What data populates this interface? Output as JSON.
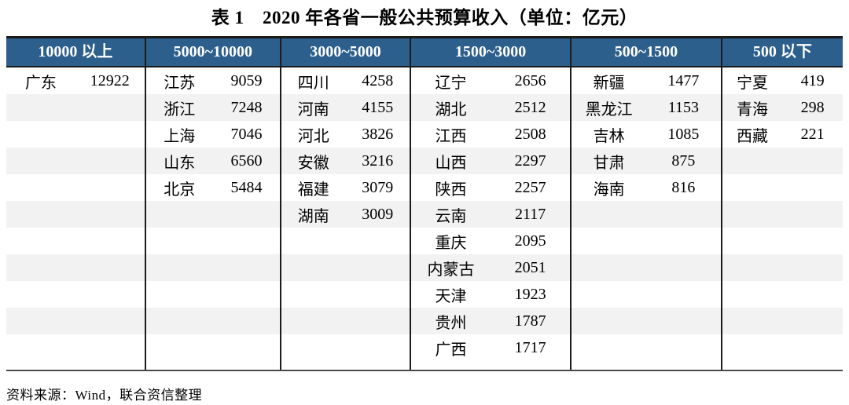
{
  "title": "表 1　2020 年各省一般公共预算收入（单位：亿元）",
  "source_note": "资料来源：Wind，联合资信整理",
  "colors": {
    "header_bg": "#2d5f8c",
    "header_text": "#ffffff",
    "stripe": "#f2f2f2",
    "border": "#1b1b1b"
  },
  "table": {
    "row_count": 11,
    "columns": [
      {
        "header": "10000 以上",
        "entries": [
          {
            "name": "广东",
            "value": "12922"
          }
        ]
      },
      {
        "header": "5000~10000",
        "entries": [
          {
            "name": "江苏",
            "value": "9059"
          },
          {
            "name": "浙江",
            "value": "7248"
          },
          {
            "name": "上海",
            "value": "7046"
          },
          {
            "name": "山东",
            "value": "6560"
          },
          {
            "name": "北京",
            "value": "5484"
          }
        ]
      },
      {
        "header": "3000~5000",
        "entries": [
          {
            "name": "四川",
            "value": "4258"
          },
          {
            "name": "河南",
            "value": "4155"
          },
          {
            "name": "河北",
            "value": "3826"
          },
          {
            "name": "安徽",
            "value": "3216"
          },
          {
            "name": "福建",
            "value": "3079"
          },
          {
            "name": "湖南",
            "value": "3009"
          }
        ]
      },
      {
        "header": "1500~3000",
        "entries": [
          {
            "name": "辽宁",
            "value": "2656"
          },
          {
            "name": "湖北",
            "value": "2512"
          },
          {
            "name": "江西",
            "value": "2508"
          },
          {
            "name": "山西",
            "value": "2297"
          },
          {
            "name": "陕西",
            "value": "2257"
          },
          {
            "name": "云南",
            "value": "2117"
          },
          {
            "name": "重庆",
            "value": "2095"
          },
          {
            "name": "内蒙古",
            "value": "2051"
          },
          {
            "name": "天津",
            "value": "1923"
          },
          {
            "name": "贵州",
            "value": "1787"
          },
          {
            "name": "广西",
            "value": "1717"
          }
        ]
      },
      {
        "header": "500~1500",
        "entries": [
          {
            "name": "新疆",
            "value": "1477"
          },
          {
            "name": "黑龙江",
            "value": "1153"
          },
          {
            "name": "吉林",
            "value": "1085"
          },
          {
            "name": "甘肃",
            "value": "875"
          },
          {
            "name": "海南",
            "value": "816"
          }
        ]
      },
      {
        "header": "500 以下",
        "entries": [
          {
            "name": "宁夏",
            "value": "419"
          },
          {
            "name": "青海",
            "value": "298"
          },
          {
            "name": "西藏",
            "value": "221"
          }
        ]
      }
    ]
  }
}
